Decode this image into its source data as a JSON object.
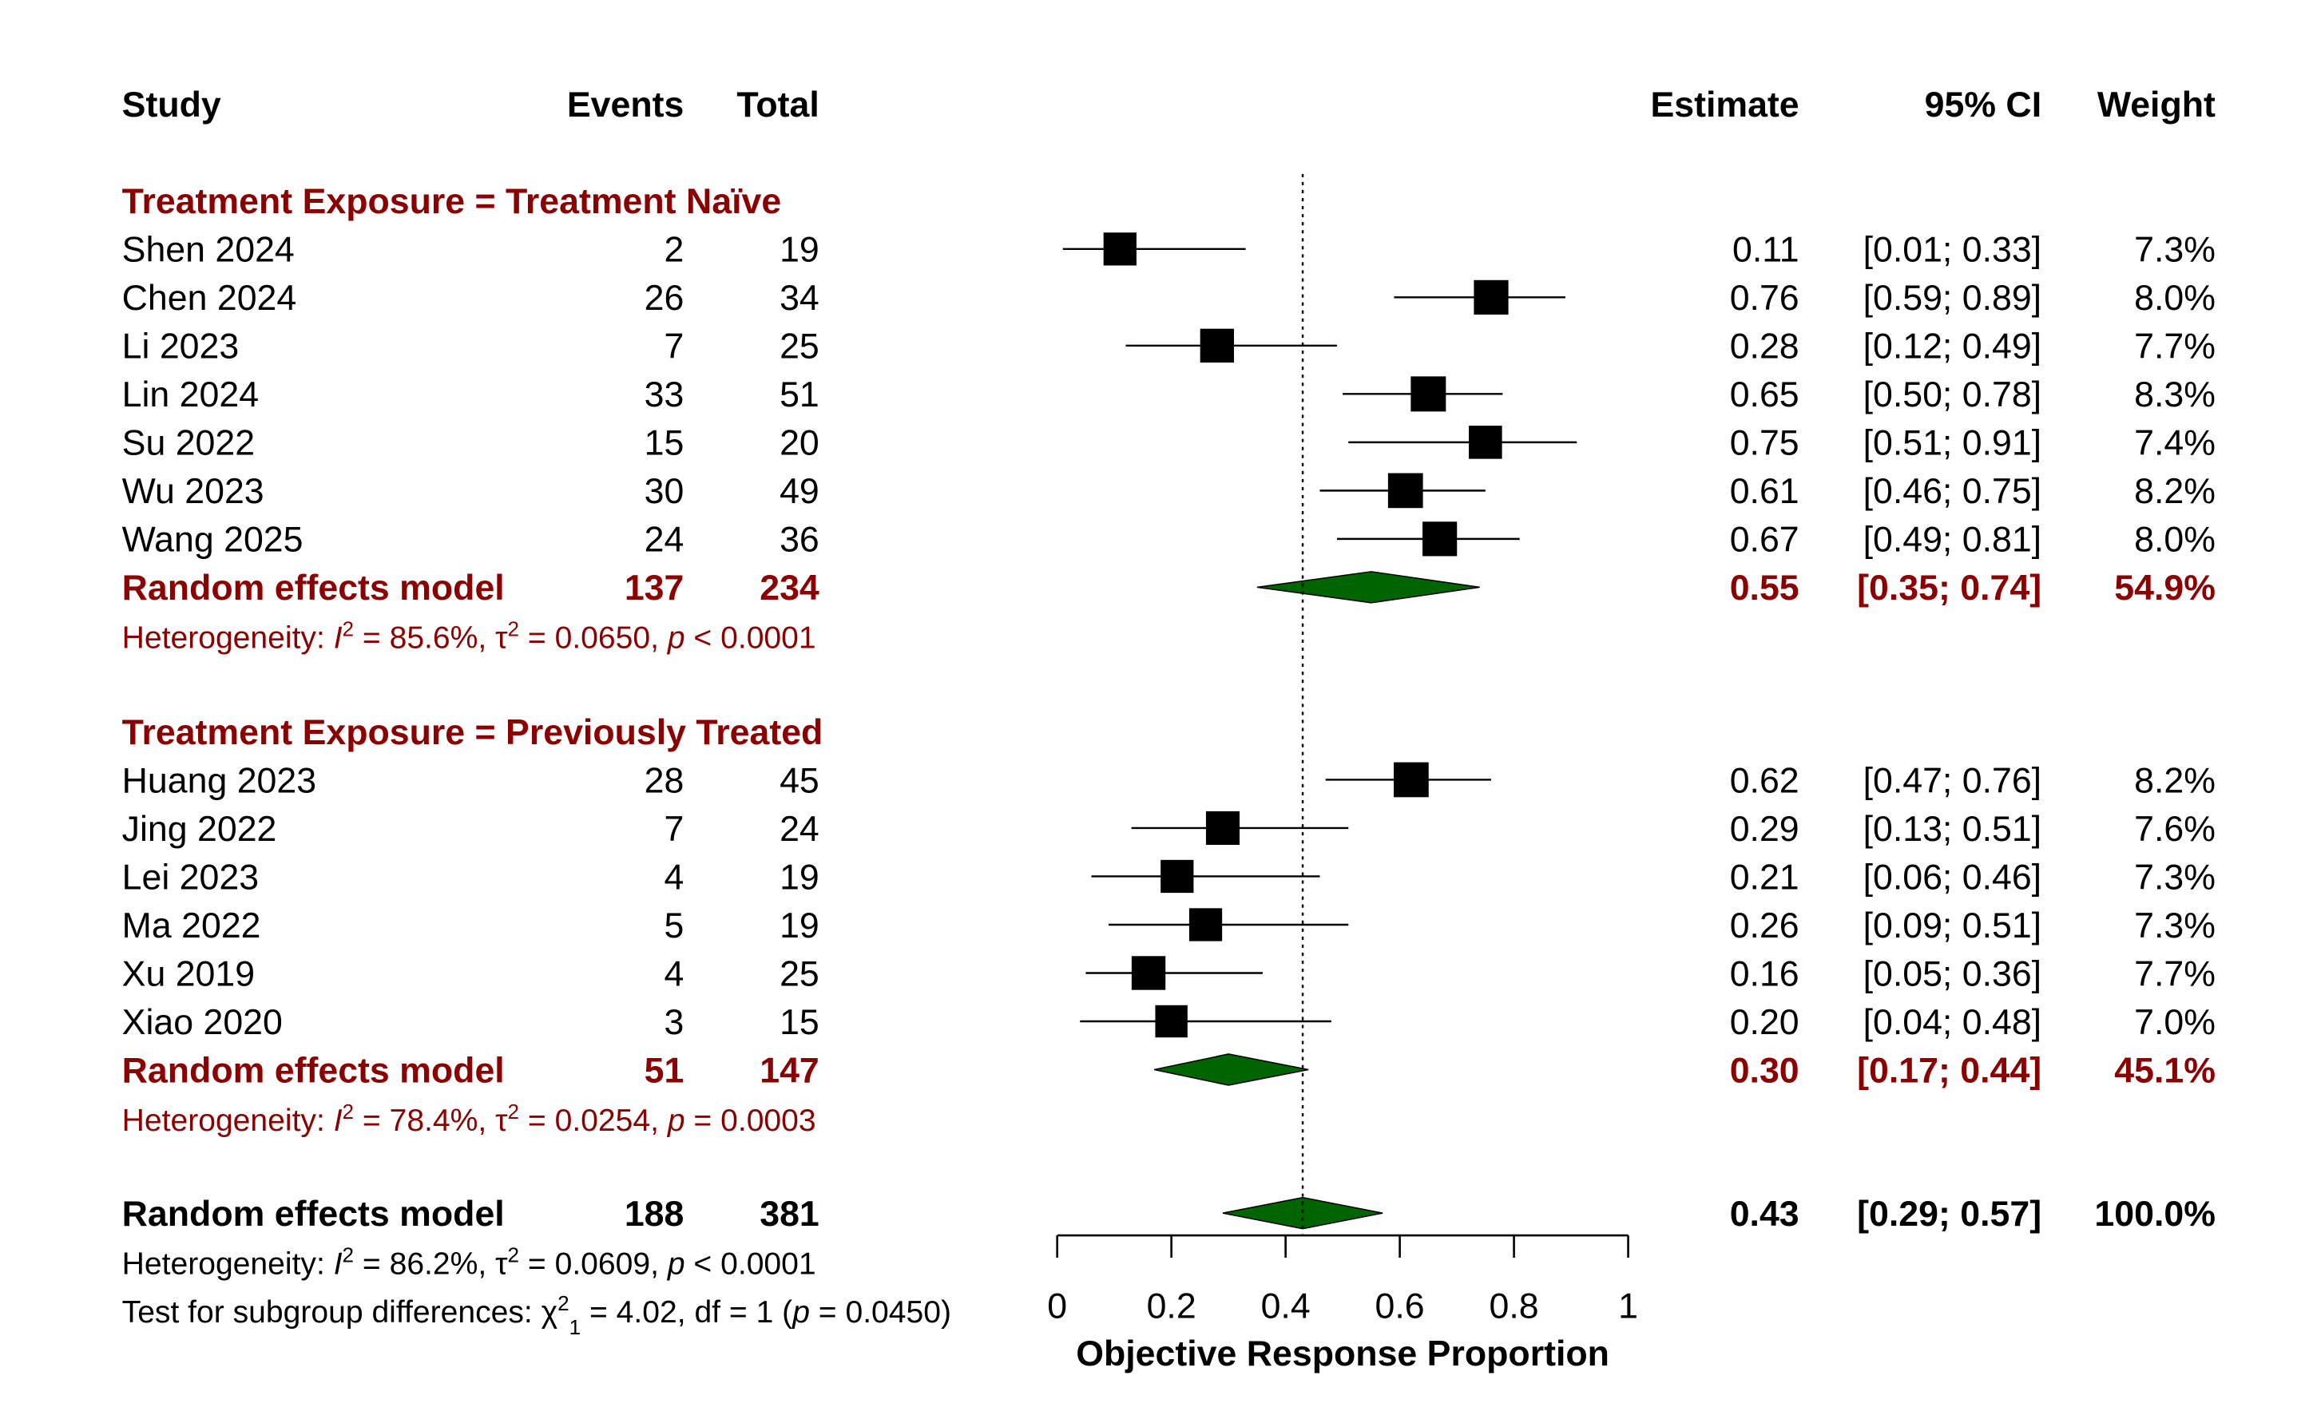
{
  "headers": {
    "study": "Study",
    "events": "Events",
    "total": "Total",
    "estimate": "Estimate",
    "ci": "95% CI",
    "weight": "Weight"
  },
  "colors": {
    "group": "#8b0000",
    "diamond_fill": "#006400",
    "box": "#000000",
    "text": "#000000"
  },
  "groups": [
    {
      "label": "Treatment Exposure = Treatment Naïve",
      "studies": [
        {
          "study": "Shen 2024",
          "events": "2",
          "total": "19",
          "est": 0.11,
          "lo": 0.01,
          "hi": 0.33,
          "estimate": "0.11",
          "ci": "[0.01; 0.33]",
          "weight": "7.3%",
          "w": 7.3
        },
        {
          "study": "Chen 2024",
          "events": "26",
          "total": "34",
          "est": 0.76,
          "lo": 0.59,
          "hi": 0.89,
          "estimate": "0.76",
          "ci": "[0.59; 0.89]",
          "weight": "8.0%",
          "w": 8.0
        },
        {
          "study": "Li 2023",
          "events": "7",
          "total": "25",
          "est": 0.28,
          "lo": 0.12,
          "hi": 0.49,
          "estimate": "0.28",
          "ci": "[0.12; 0.49]",
          "weight": "7.7%",
          "w": 7.7
        },
        {
          "study": "Lin 2024",
          "events": "33",
          "total": "51",
          "est": 0.65,
          "lo": 0.5,
          "hi": 0.78,
          "estimate": "0.65",
          "ci": "[0.50; 0.78]",
          "weight": "8.3%",
          "w": 8.3
        },
        {
          "study": "Su 2022",
          "events": "15",
          "total": "20",
          "est": 0.75,
          "lo": 0.51,
          "hi": 0.91,
          "estimate": "0.75",
          "ci": "[0.51; 0.91]",
          "weight": "7.4%",
          "w": 7.4
        },
        {
          "study": "Wu 2023",
          "events": "30",
          "total": "49",
          "est": 0.61,
          "lo": 0.46,
          "hi": 0.75,
          "estimate": "0.61",
          "ci": "[0.46; 0.75]",
          "weight": "8.2%",
          "w": 8.2
        },
        {
          "study": "Wang 2025",
          "events": "24",
          "total": "36",
          "est": 0.67,
          "lo": 0.49,
          "hi": 0.81,
          "estimate": "0.67",
          "ci": "[0.49; 0.81]",
          "weight": "8.0%",
          "w": 8.0
        }
      ],
      "summary": {
        "label": "Random effects model",
        "events": "137",
        "total": "234",
        "est": 0.55,
        "lo": 0.35,
        "hi": 0.74,
        "estimate": "0.55",
        "ci": "[0.35; 0.74]",
        "weight": "54.9%"
      },
      "heterogeneity": {
        "prefix": "Heterogeneity: ",
        "i2": "= 85.6%, ",
        "tau2": "= 0.0650, ",
        "p": "< 0.0001"
      }
    },
    {
      "label": "Treatment Exposure = Previously Treated",
      "studies": [
        {
          "study": "Huang 2023",
          "events": "28",
          "total": "45",
          "est": 0.62,
          "lo": 0.47,
          "hi": 0.76,
          "estimate": "0.62",
          "ci": "[0.47; 0.76]",
          "weight": "8.2%",
          "w": 8.2
        },
        {
          "study": "Jing 2022",
          "events": "7",
          "total": "24",
          "est": 0.29,
          "lo": 0.13,
          "hi": 0.51,
          "estimate": "0.29",
          "ci": "[0.13; 0.51]",
          "weight": "7.6%",
          "w": 7.6
        },
        {
          "study": "Lei 2023",
          "events": "4",
          "total": "19",
          "est": 0.21,
          "lo": 0.06,
          "hi": 0.46,
          "estimate": "0.21",
          "ci": "[0.06; 0.46]",
          "weight": "7.3%",
          "w": 7.3
        },
        {
          "study": "Ma 2022",
          "events": "5",
          "total": "19",
          "est": 0.26,
          "lo": 0.09,
          "hi": 0.51,
          "estimate": "0.26",
          "ci": "[0.09; 0.51]",
          "weight": "7.3%",
          "w": 7.3
        },
        {
          "study": "Xu 2019",
          "events": "4",
          "total": "25",
          "est": 0.16,
          "lo": 0.05,
          "hi": 0.36,
          "estimate": "0.16",
          "ci": "[0.05; 0.36]",
          "weight": "7.7%",
          "w": 7.7
        },
        {
          "study": "Xiao 2020",
          "events": "3",
          "total": "15",
          "est": 0.2,
          "lo": 0.04,
          "hi": 0.48,
          "estimate": "0.20",
          "ci": "[0.04; 0.48]",
          "weight": "7.0%",
          "w": 7.0
        }
      ],
      "summary": {
        "label": "Random effects model",
        "events": "51",
        "total": "147",
        "est": 0.3,
        "lo": 0.17,
        "hi": 0.44,
        "estimate": "0.30",
        "ci": "[0.17; 0.44]",
        "weight": "45.1%"
      },
      "heterogeneity": {
        "prefix": "Heterogeneity: ",
        "i2": "= 78.4%, ",
        "tau2": "= 0.0254, ",
        "p": "= 0.0003"
      }
    }
  ],
  "overall": {
    "label": "Random effects model",
    "events": "188",
    "total": "381",
    "est": 0.43,
    "lo": 0.29,
    "hi": 0.57,
    "estimate": "0.43",
    "ci": "[0.29; 0.57]",
    "weight": "100.0%",
    "heterogeneity": {
      "prefix": "Heterogeneity: ",
      "i2": "= 86.2%, ",
      "tau2": "= 0.0609, ",
      "p": "< 0.0001"
    },
    "subgroup_test": {
      "prefix": "Test for subgroup differences: ",
      "chi": "= 4.02, df = 1 (",
      "p": "= 0.0450)"
    }
  },
  "chart_data": {
    "type": "forest",
    "xlabel": "Objective Response Proportion",
    "xlim": [
      0,
      1
    ],
    "xticks": [
      0,
      0.2,
      0.4,
      0.6,
      0.8,
      1
    ],
    "xtick_labels": [
      "0",
      "0.2",
      "0.4",
      "0.6",
      "0.8",
      "1"
    ],
    "reference_line": 0.43,
    "reference_style": "dotted"
  }
}
